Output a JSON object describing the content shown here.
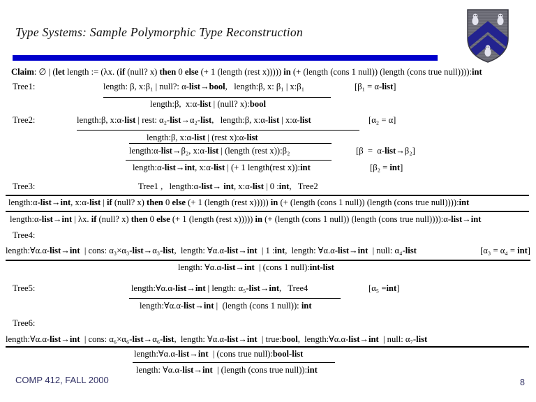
{
  "slide": {
    "title": "Type Systems: Sample Polymorphic Type Reconstruction",
    "footer": "COMP 412, FALL 2000",
    "page_number": "8",
    "divider_color": "#0000cc",
    "logo": {
      "name": "rice-university-shield",
      "field_color": "#73737d",
      "stripe_color": "#5c5c66",
      "chevron_color": "#23238f",
      "owl_color": "#e4e4ee"
    }
  },
  "claim": "**Claim**: ∅ | (**let** length := (λx. (**if** (null? x) **then** 0 **else** (+ 1 (length (rest x))))) **in** (+ (length (cons 1 null)) (length (cons true null)))):**int**",
  "trees": {
    "tree1": {
      "label": "Tree1:",
      "numerator": "length: β, x:β₁ | null?: α-**list**→**bool**,   length:β, x: β₁ | x:β₁",
      "constraint": "[β₁ = α-**list**]",
      "conclusion": "length:β,  x:α-**list** | (null? x):**bool**"
    },
    "tree2": {
      "label": "Tree2:",
      "numerator": "length:β, x:α-**list** | rest: α₂-**list**→α₂-**list**,   length:β, x:α-**list** | x:α-**list**",
      "constraint1": "[α₂ = α]",
      "line2": "length:β, x:α-**list** | (rest x):α-**list**",
      "line3": "length:α-**list**→β₂, x:α-**list** | (length (rest x)):β₂",
      "constraint2": "[β  =  α-**list**→β₂]",
      "line4": "length:α-**list**→**int**, x:α-**list** | (+ 1 length(rest x)):**int**",
      "constraint3": "[β₂ = **int**]"
    },
    "tree3": {
      "label": "Tree3:",
      "numerator": "Tree1 ,   length:α-**list**→ **int**, x:α-**list** | 0 :**int**,   Tree2",
      "conclusion": "length:α-**list**→**int**, x:α-**list** | **if** (null? x) **then** 0 **else** (+ 1 (length (rest x))))) **in** (+ (length (cons 1 null)) (length (cons true null)))):**int**"
    },
    "lambda_abstraction": "length:α-**list**→**int** | λx. **if** (null? x) **then** 0 **else** (+ 1 (length (rest x))))) **in** (+ (length (cons 1 null)) (length (cons true null)))):α-**list**→**int**",
    "tree4": {
      "label": "Tree4:",
      "numerator": "length:∀α.α-**list**→**int**  | cons: α₃×α₃-**list**→α₃-**list**,  length: ∀α.α-**list**→**int**  | 1 :**int**,  length: ∀α.α-**list**→**int**  | null: α₄-**list**",
      "constraint": "[α₃ = α₄ = **int**]",
      "conclusion": "length: ∀α.α-**list**→**int**  | (cons 1 null):**int-list**"
    },
    "tree5": {
      "label": "Tree5:",
      "numerator": "length:∀α.α-**list**→**int** | length: α₅-**list**→**int**,   Tree4",
      "constraint": "[α₅ =**int**]",
      "conclusion": "length:∀α.α-**list**→**int** |  (length (cons 1 null)): **int**"
    },
    "tree6": {
      "label": "Tree6:",
      "numerator": "length:∀α.α-**list**→**int**  | cons: α₆×α₆-**list**→α₆-**list**,  length: ∀α.α-**list**→**int**  | true:**bool**,  length:∀α.α-**list**→**int**  | null: α₇-**list**",
      "conclusion1": "length:∀α.α-**list**→**int**  | (cons true null):**bool-list**",
      "conclusion2": "length: ∀α.α-**list**→**int**  | (length (cons true null)):**int**"
    }
  }
}
